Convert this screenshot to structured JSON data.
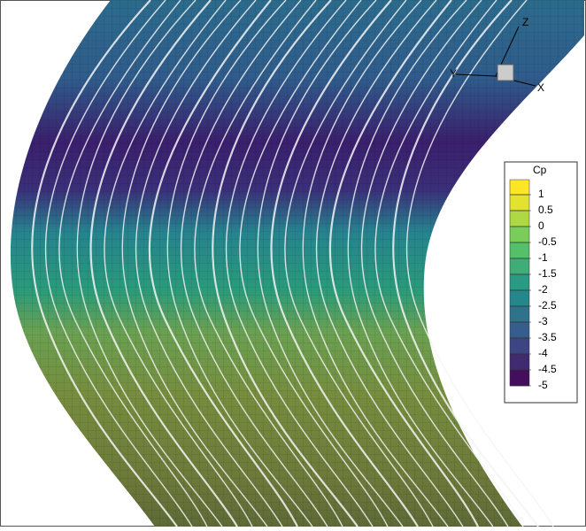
{
  "colorbar": {
    "title": "Cp",
    "levels": [
      1,
      0.5,
      0,
      -0.5,
      -1,
      -1.5,
      -2,
      -2.5,
      -3,
      -3.5,
      -4,
      -4.5,
      -5
    ]
  },
  "axes_triad": {
    "z": "Z",
    "y": "Y",
    "x": "X"
  }
}
